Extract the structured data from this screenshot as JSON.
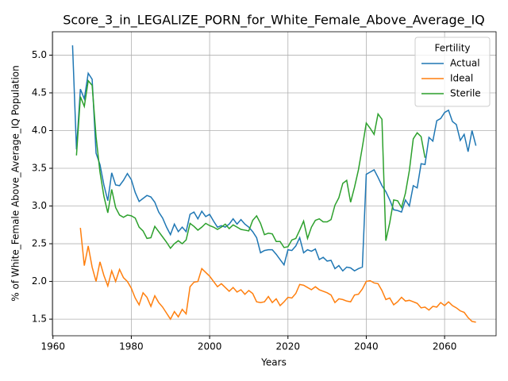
{
  "chart_data": {
    "type": "line",
    "title": "Score_3_in_LEGALIZE_PORN_for_White_Female_Above_Average_IQ",
    "xlabel": "Years",
    "ylabel": "% of White_Female Above_Average_IQ Population",
    "legend_title": "Fertility",
    "legend": "upper right",
    "grid": true,
    "x": [
      1965,
      1966,
      1967,
      1968,
      1969,
      1970,
      1971,
      1972,
      1973,
      1974,
      1975,
      1976,
      1977,
      1978,
      1979,
      1980,
      1981,
      1982,
      1983,
      1984,
      1985,
      1986,
      1987,
      1988,
      1989,
      1990,
      1991,
      1992,
      1993,
      1994,
      1995,
      1996,
      1997,
      1998,
      1999,
      2000,
      2001,
      2002,
      2003,
      2004,
      2005,
      2006,
      2007,
      2008,
      2009,
      2010,
      2011,
      2012,
      2013,
      2014,
      2015,
      2016,
      2017,
      2018,
      2019,
      2020,
      2021,
      2022,
      2023,
      2024,
      2025,
      2026,
      2027,
      2028,
      2029,
      2030,
      2031,
      2032,
      2033,
      2034,
      2035,
      2036,
      2037,
      2038,
      2039,
      2040,
      2041,
      2042,
      2043,
      2044,
      2045,
      2046,
      2047,
      2048,
      2049,
      2050,
      2051,
      2052,
      2053,
      2054,
      2055,
      2056,
      2057,
      2058,
      2059,
      2060,
      2061,
      2062,
      2063,
      2064,
      2065,
      2066,
      2067,
      2068
    ],
    "series": [
      {
        "name": "Actual",
        "color": "#1f77b4",
        "values": [
          5.13,
          3.75,
          4.55,
          4.42,
          4.76,
          4.68,
          3.7,
          3.55,
          3.28,
          3.07,
          3.44,
          3.28,
          3.27,
          3.34,
          3.43,
          3.35,
          3.18,
          3.06,
          3.1,
          3.14,
          3.12,
          3.05,
          2.92,
          2.84,
          2.72,
          2.62,
          2.76,
          2.66,
          2.72,
          2.66,
          2.89,
          2.92,
          2.83,
          2.93,
          2.86,
          2.89,
          2.8,
          2.72,
          2.74,
          2.72,
          2.76,
          2.83,
          2.76,
          2.82,
          2.76,
          2.72,
          2.66,
          2.58,
          2.38,
          2.41,
          2.42,
          2.42,
          2.36,
          2.29,
          2.22,
          2.42,
          2.41,
          2.47,
          2.58,
          2.38,
          2.42,
          2.4,
          2.43,
          2.29,
          2.32,
          2.27,
          2.28,
          2.17,
          2.21,
          2.14,
          2.19,
          2.18,
          2.14,
          2.17,
          2.19,
          3.42,
          3.45,
          3.48,
          3.38,
          3.27,
          3.19,
          3.08,
          2.95,
          2.94,
          2.92,
          3.08,
          3.0,
          3.27,
          3.24,
          3.56,
          3.55,
          3.91,
          3.86,
          4.13,
          4.16,
          4.24,
          4.27,
          4.12,
          4.08,
          3.87,
          3.95,
          3.72,
          4.0,
          3.8
        ]
      },
      {
        "name": "Ideal",
        "color": "#ff7f0e",
        "values": [
          null,
          null,
          2.71,
          2.21,
          2.47,
          2.19,
          2.0,
          2.26,
          2.08,
          1.94,
          2.14,
          2.0,
          2.16,
          2.05,
          2.0,
          1.91,
          1.78,
          1.69,
          1.85,
          1.79,
          1.67,
          1.81,
          1.72,
          1.66,
          1.58,
          1.5,
          1.6,
          1.53,
          1.63,
          1.57,
          1.93,
          1.99,
          2.0,
          2.17,
          2.12,
          2.07,
          2.0,
          1.93,
          1.97,
          1.92,
          1.87,
          1.92,
          1.86,
          1.89,
          1.83,
          1.88,
          1.84,
          1.73,
          1.72,
          1.73,
          1.8,
          1.72,
          1.77,
          1.68,
          1.73,
          1.79,
          1.78,
          1.84,
          1.96,
          1.95,
          1.92,
          1.89,
          1.93,
          1.89,
          1.87,
          1.85,
          1.82,
          1.72,
          1.77,
          1.76,
          1.74,
          1.73,
          1.82,
          1.83,
          1.9,
          2.0,
          2.01,
          1.98,
          1.97,
          1.88,
          1.76,
          1.78,
          1.69,
          1.73,
          1.79,
          1.74,
          1.75,
          1.73,
          1.71,
          1.65,
          1.66,
          1.62,
          1.67,
          1.66,
          1.72,
          1.68,
          1.73,
          1.68,
          1.65,
          1.61,
          1.59,
          1.52,
          1.47,
          1.46
        ]
      },
      {
        "name": "Sterile",
        "color": "#2ca02c",
        "values": [
          null,
          3.67,
          4.45,
          4.32,
          4.66,
          4.6,
          3.92,
          3.45,
          3.13,
          2.91,
          3.22,
          2.98,
          2.88,
          2.85,
          2.88,
          2.87,
          2.84,
          2.72,
          2.67,
          2.57,
          2.58,
          2.73,
          2.66,
          2.59,
          2.52,
          2.44,
          2.5,
          2.54,
          2.5,
          2.55,
          2.77,
          2.73,
          2.68,
          2.72,
          2.77,
          2.74,
          2.72,
          2.69,
          2.72,
          2.76,
          2.7,
          2.75,
          2.72,
          2.69,
          2.68,
          2.67,
          2.81,
          2.87,
          2.77,
          2.62,
          2.64,
          2.63,
          2.53,
          2.53,
          2.45,
          2.46,
          2.55,
          2.57,
          2.68,
          2.8,
          2.57,
          2.72,
          2.81,
          2.83,
          2.79,
          2.79,
          2.82,
          3.01,
          3.11,
          3.3,
          3.34,
          3.05,
          3.25,
          3.48,
          3.78,
          4.1,
          4.03,
          3.95,
          4.22,
          4.15,
          2.54,
          2.78,
          3.08,
          3.07,
          2.98,
          3.17,
          3.47,
          3.89,
          3.97,
          3.92,
          3.64,
          null,
          null,
          null,
          null,
          null,
          null,
          null,
          null,
          null,
          null,
          null,
          null,
          null
        ]
      }
    ],
    "xlim": [
      1959.85,
      2073.15
    ],
    "xticks": [
      1960,
      1980,
      2000,
      2020,
      2040,
      2060
    ],
    "ylim": [
      1.28,
      5.31
    ],
    "yticks": [
      1.5,
      {
        "value": 2,
        "label": "2.0"
      },
      2.5,
      {
        "value": 3,
        "label": "3.0"
      },
      3.5,
      {
        "value": 4,
        "label": "4.0"
      },
      4.5,
      {
        "value": 5,
        "label": "5.0"
      }
    ]
  }
}
